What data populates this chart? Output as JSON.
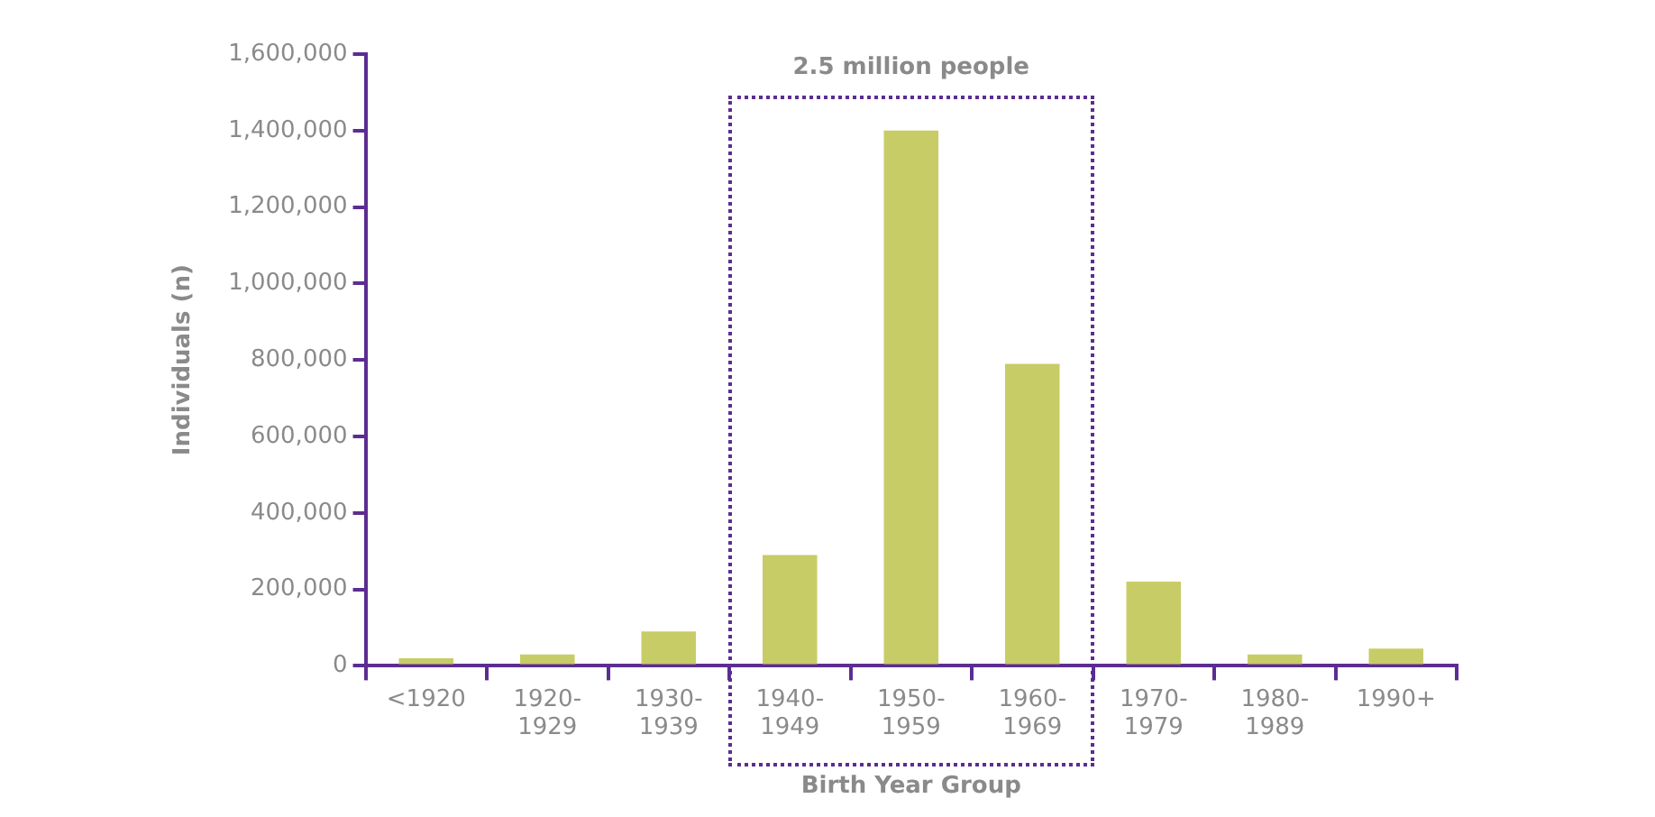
{
  "chart_data": {
    "type": "bar",
    "xlabel": "Birth Year Group",
    "ylabel": "Individuals (n)",
    "categories": [
      "<1920",
      "1920-\n1929",
      "1930-\n1939",
      "1940-\n1949",
      "1950-\n1959",
      "1960-\n1969",
      "1970-\n1979",
      "1980-\n1989",
      "1990+"
    ],
    "values": [
      20000,
      30000,
      90000,
      290000,
      1400000,
      790000,
      220000,
      30000,
      45000
    ],
    "color": "#c8cc66",
    "ylim": [
      0,
      1600000
    ],
    "yticks": [
      {
        "value": 0,
        "label": "0"
      },
      {
        "value": 200000,
        "label": "200,000"
      },
      {
        "value": 400000,
        "label": "400,000"
      },
      {
        "value": 600000,
        "label": "600,000"
      },
      {
        "value": 800000,
        "label": "800,000"
      },
      {
        "value": 1000000,
        "label": "1,000,000"
      },
      {
        "value": 1200000,
        "label": "1,200,000"
      },
      {
        "value": 1400000,
        "label": "1,400,000"
      },
      {
        "value": 1600000,
        "label": "1,600,000"
      }
    ],
    "grid": false,
    "annotations": [
      "2.5 million people"
    ]
  }
}
